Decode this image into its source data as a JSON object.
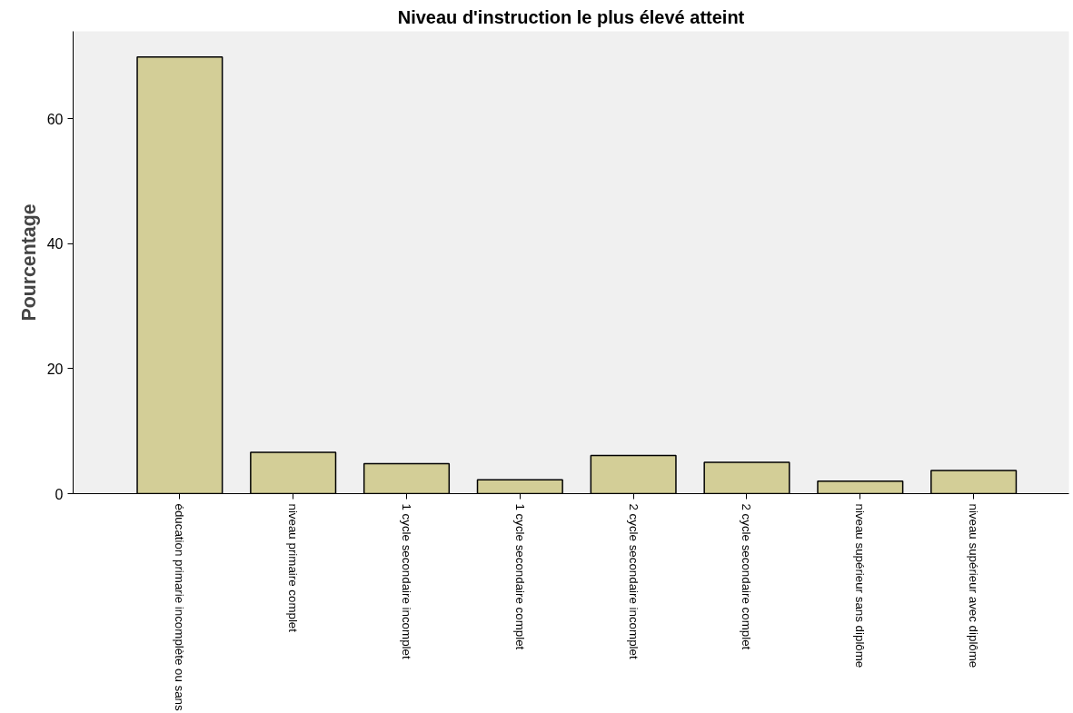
{
  "chart_data": {
    "type": "bar",
    "title": "Niveau d'instruction le plus élevé atteint",
    "ylabel": "Pourcentage",
    "categories": [
      "éducation primarie incomplète ou sans",
      "niveau primaire complet",
      "1 cycle secondaire incomplet",
      "1 cycle secondaire complet",
      "2 cycle secondaire incomplet",
      "2 cycle secondaire complet",
      "niveau supérieur sans diplôme",
      "niveau supérieur avec diplôme"
    ],
    "values": [
      69.9,
      6.6,
      4.8,
      2.2,
      6.1,
      5.0,
      2.0,
      3.7
    ],
    "color": "#d3ce97",
    "ylim": [
      0,
      74
    ],
    "yticks": [
      0,
      20,
      40,
      60
    ],
    "grid": false
  }
}
